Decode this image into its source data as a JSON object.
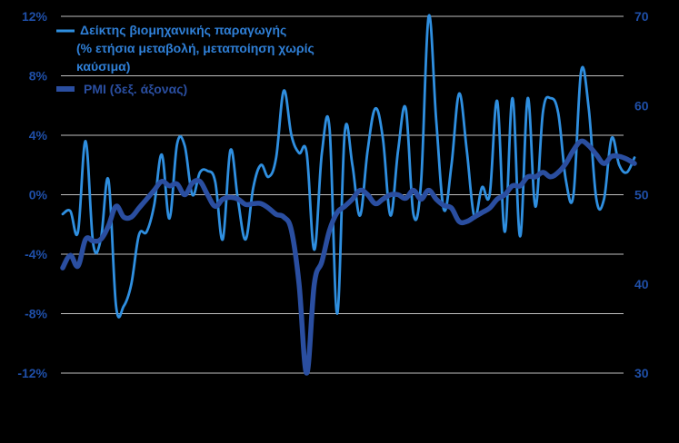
{
  "chart_data": {
    "type": "line",
    "title": "",
    "xlabel": "",
    "ylabel": "",
    "y_left": {
      "ticks": [
        12,
        8,
        4,
        0,
        -4,
        -8,
        -12
      ],
      "tick_labels": [
        "12%",
        "8%",
        "4%",
        "0%",
        "-4%",
        "-8%",
        "-12%"
      ],
      "ylim": [
        -12,
        12
      ]
    },
    "y_right": {
      "ticks": [
        70,
        60,
        50,
        40,
        30
      ],
      "tick_labels": [
        "70",
        "60",
        "50",
        "40",
        "30"
      ],
      "ylim": [
        30,
        70
      ]
    },
    "grid": true,
    "legend_position": "top-left",
    "series": [
      {
        "name": "Δείκτης βιομηχανικής παραγωγής (% ετήσια μεταβολή, μεταποίηση χωρίς καύσιμα)",
        "legend_lines": [
          "Δείκτης βιομηχανικής παραγωγής",
          "(% ετήσια μεταβολή, μεταποίηση χωρίς",
          "καύσιμα)"
        ],
        "axis": "left",
        "color": "#2f8fe0",
        "values": [
          -1.3,
          -1.1,
          -2.5,
          3.6,
          -3.3,
          -3.0,
          1.0,
          -7.5,
          -7.5,
          -6.0,
          -2.7,
          -2.5,
          -0.7,
          2.7,
          -1.6,
          3.4,
          3.3,
          0.0,
          1.5,
          1.6,
          0.9,
          -3.0,
          3.0,
          -0.4,
          -3.0,
          0.5,
          2.0,
          1.2,
          2.5,
          7.0,
          4.0,
          2.8,
          2.8,
          -3.7,
          2.8,
          4.5,
          -8.0,
          4.2,
          2.0,
          -1.4,
          3.0,
          5.8,
          3.8,
          -1.4,
          3.0,
          5.8,
          -1.3,
          0.8,
          12.0,
          5.0,
          -1.0,
          2.0,
          6.8,
          3.0,
          -1.5,
          0.5,
          0.0,
          6.3,
          -2.5,
          6.5,
          -2.8,
          6.5,
          -0.8,
          5.6,
          6.5,
          5.5,
          1.0,
          0.0,
          8.3,
          5.8,
          -0.3,
          -0.3,
          3.8,
          2.0,
          1.5,
          2.5
        ]
      },
      {
        "name": "PMI (δεξ. άξονας)",
        "axis": "right",
        "color": "#2a4ea0",
        "values": [
          41.8,
          43.2,
          42.0,
          45.0,
          44.8,
          45.0,
          46.5,
          48.7,
          47.5,
          47.5,
          48.5,
          49.5,
          50.5,
          51.5,
          51.0,
          51.2,
          50.0,
          51.3,
          51.5,
          50.0,
          48.7,
          49.5,
          49.7,
          49.5,
          48.9,
          49.0,
          49.0,
          48.5,
          47.8,
          47.5,
          46.0,
          40.0,
          30.0,
          40.0,
          42.5,
          46.0,
          48.0,
          48.7,
          49.5,
          50.5,
          50.0,
          49.0,
          49.5,
          50.0,
          50.0,
          49.6,
          50.5,
          49.5,
          50.5,
          49.5,
          48.8,
          48.5,
          47.0,
          47.0,
          47.5,
          48.0,
          48.5,
          49.5,
          50.0,
          51.0,
          51.0,
          52.0,
          52.0,
          52.5,
          52.0,
          52.5,
          53.5,
          55.0,
          56.0,
          55.5,
          54.5,
          53.5,
          54.3,
          54.3,
          54.0,
          53.5
        ]
      }
    ]
  }
}
